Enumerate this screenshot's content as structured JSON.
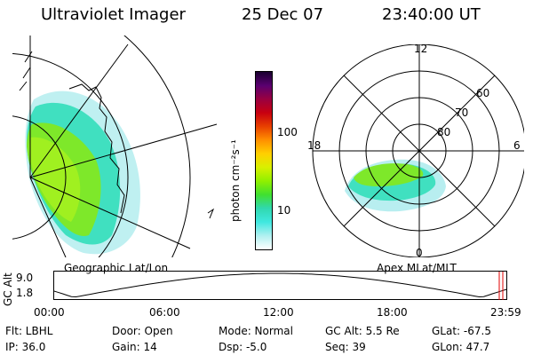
{
  "header": {
    "title": "Ultraviolet Imager",
    "date": "25 Dec 07",
    "time": "23:40:00 UT"
  },
  "colorbar": {
    "unit_label": "photon cm⁻²s⁻¹",
    "ticks": [
      "100",
      "10"
    ],
    "colors": [
      "#1a0030",
      "#5a0070",
      "#9a0040",
      "#c80010",
      "#e84000",
      "#ff9000",
      "#ffd000",
      "#d8f000",
      "#90f000",
      "#40e030",
      "#30d8b0",
      "#40e8e0",
      "#b0f0f0",
      "#ffffff"
    ]
  },
  "panels": {
    "left_caption": "Geographic Lat/Lon",
    "right_caption": "Apex MLat/MLT",
    "polar_labels": {
      "mlt": [
        "12",
        "18",
        "6",
        "0"
      ],
      "mlat": [
        "60",
        "70",
        "80"
      ]
    }
  },
  "timeline": {
    "axis_label": "GC Alt",
    "y_ticks": [
      "9.0",
      "1.8"
    ],
    "x_ticks": [
      "00:00",
      "06:00",
      "12:00",
      "18:00",
      "23:59"
    ],
    "marker_color": "#e00000"
  },
  "info": {
    "flt": "Flt: LBHL",
    "ip": "IP: 36.0",
    "door": "Door: Open",
    "gain": "Gain: 14",
    "mode": "Mode: Normal",
    "dsp": "Dsp:    -5.0",
    "gc_alt": "GC Alt: 5.5 Re",
    "seq": "Seq: 39",
    "glat": "GLat: -67.5",
    "glon": "GLon:  47.7"
  }
}
